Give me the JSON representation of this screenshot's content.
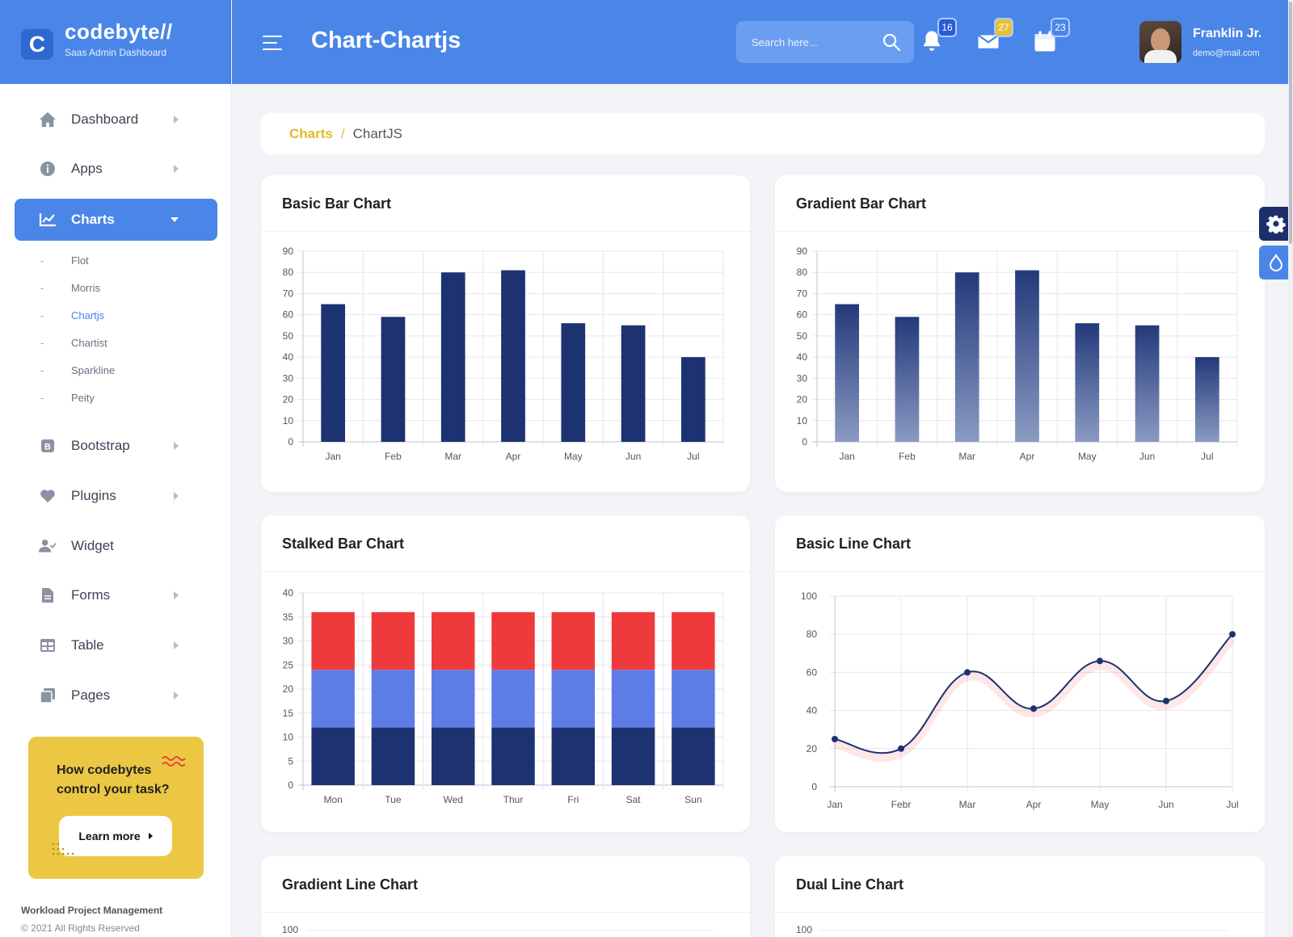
{
  "brand": {
    "name": "codebyte//",
    "subtitle": "Saas Admin Dashboard",
    "logo_letter": "C"
  },
  "header": {
    "title": "Chart-Chartjs",
    "search_placeholder": "Search here...",
    "notifications": {
      "icon": "bell-icon",
      "count": "16"
    },
    "messages": {
      "icon": "envelope-icon",
      "count": "27"
    },
    "calendar": {
      "icon": "calendar-icon",
      "count": "23"
    },
    "user": {
      "name": "Franklin Jr.",
      "email": "demo@mail.com"
    }
  },
  "sidebar": {
    "items": [
      {
        "label": "Dashboard",
        "icon": "home-icon"
      },
      {
        "label": "Apps",
        "icon": "info-icon"
      },
      {
        "label": "Charts",
        "icon": "chart-line-icon"
      },
      {
        "label": "Bootstrap",
        "icon": "bootstrap-icon"
      },
      {
        "label": "Plugins",
        "icon": "heart-icon"
      },
      {
        "label": "Widget",
        "icon": "user-check-icon"
      },
      {
        "label": "Forms",
        "icon": "document-icon"
      },
      {
        "label": "Table",
        "icon": "table-icon"
      },
      {
        "label": "Pages",
        "icon": "pages-icon"
      }
    ],
    "chart_submenu": [
      "Flot",
      "Morris",
      "Chartjs",
      "Chartist",
      "Sparkline",
      "Peity"
    ],
    "promo": {
      "text": "How codebytes control your task?",
      "button": "Learn more"
    },
    "footer": {
      "title": "Workload Project Management",
      "copyright": "© 2021 All Rights Reserved"
    }
  },
  "breadcrumb": {
    "parent": "Charts",
    "separator": "/",
    "current": "ChartJS"
  },
  "colors": {
    "primary": "#4a86e8",
    "navy": "#1d3270",
    "accent": "#ebc743",
    "red": "#ef3a3d",
    "mid_blue": "#5e7ce6"
  },
  "cards": {
    "basic_bar": "Basic Bar Chart",
    "gradient_bar": "Gradient Bar Chart",
    "stacked_bar": "Stalked Bar Chart",
    "basic_line": "Basic Line Chart",
    "gradient_line": "Gradient Line Chart",
    "dual_line": "Dual Line Chart"
  },
  "chart_data": [
    {
      "type": "bar",
      "title": "Basic Bar Chart",
      "categories": [
        "Jan",
        "Feb",
        "Mar",
        "Apr",
        "May",
        "Jun",
        "Jul"
      ],
      "values": [
        65,
        59,
        80,
        81,
        56,
        55,
        40
      ],
      "ylim": [
        0,
        90
      ],
      "yticks": [
        0,
        10,
        20,
        30,
        40,
        50,
        60,
        70,
        80,
        90
      ],
      "grid": true
    },
    {
      "type": "bar",
      "title": "Gradient Bar Chart",
      "categories": [
        "Jan",
        "Feb",
        "Mar",
        "Apr",
        "May",
        "Jun",
        "Jul"
      ],
      "values": [
        65,
        59,
        80,
        81,
        56,
        55,
        40
      ],
      "ylim": [
        0,
        90
      ],
      "yticks": [
        0,
        10,
        20,
        30,
        40,
        50,
        60,
        70,
        80,
        90
      ],
      "grid": true
    },
    {
      "type": "bar",
      "title": "Stalked Bar Chart",
      "categories": [
        "Mon",
        "Tue",
        "Wed",
        "Thur",
        "Fri",
        "Sat",
        "Sun"
      ],
      "series": [
        {
          "values": [
            12,
            12,
            12,
            12,
            12,
            12,
            12
          ]
        },
        {
          "values": [
            12,
            12,
            12,
            12,
            12,
            12,
            12
          ]
        },
        {
          "values": [
            12,
            12,
            12,
            12,
            12,
            12,
            12
          ]
        }
      ],
      "ylim": [
        0,
        40
      ],
      "yticks": [
        0,
        5,
        10,
        15,
        20,
        25,
        30,
        35,
        40
      ],
      "grid": true
    },
    {
      "type": "line",
      "title": "Basic Line Chart",
      "categories": [
        "Jan",
        "Febr",
        "Mar",
        "Apr",
        "May",
        "Jun",
        "Jul"
      ],
      "values": [
        25,
        20,
        60,
        41,
        66,
        45,
        80
      ],
      "ylim": [
        0,
        100
      ],
      "yticks": [
        0,
        20,
        40,
        60,
        80,
        100
      ],
      "grid": true
    },
    {
      "type": "line",
      "title": "Gradient Line Chart",
      "yticks": [
        100
      ]
    },
    {
      "type": "line",
      "title": "Dual Line Chart",
      "yticks": [
        100
      ]
    }
  ]
}
